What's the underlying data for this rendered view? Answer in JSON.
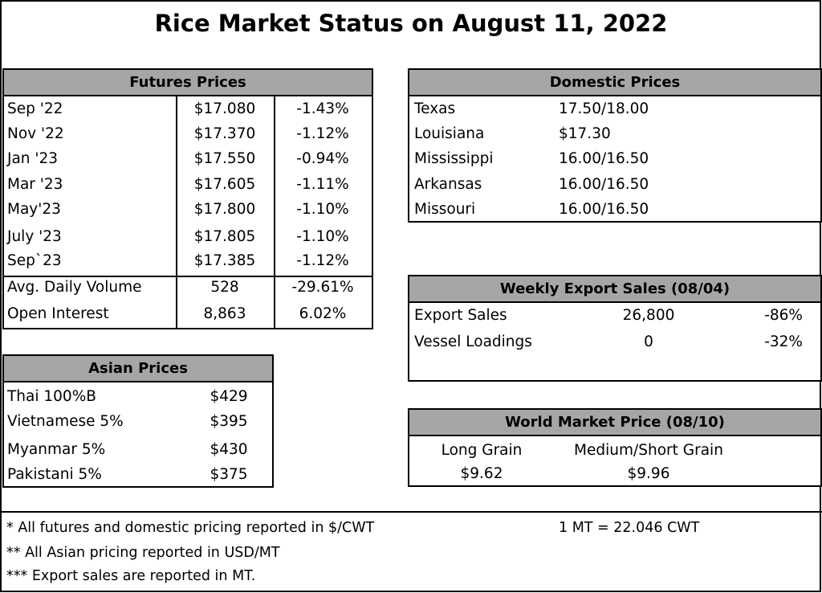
{
  "title": "Rice Market Status on August 11, 2022",
  "futures": {
    "header": "Futures Prices",
    "rows": [
      {
        "month": "Sep '22",
        "price": "$17.080",
        "change": "-1.43%"
      },
      {
        "month": "Nov '22",
        "price": "$17.370",
        "change": "-1.12%"
      },
      {
        "month": "Jan '23",
        "price": "$17.550",
        "change": "-0.94%"
      },
      {
        "month": "Mar '23",
        "price": "$17.605",
        "change": "-1.11%"
      },
      {
        "month": "May'23",
        "price": "$17.800",
        "change": "-1.10%"
      },
      {
        "month": "July '23",
        "price": "$17.805",
        "change": "-1.10%"
      },
      {
        "month": "Sep`23",
        "price": "$17.385",
        "change": "-1.12%"
      }
    ],
    "stats": [
      {
        "label": "Avg. Daily Volume",
        "value": "528",
        "change": "-29.61%"
      },
      {
        "label": "Open Interest",
        "value": "8,863",
        "change": "6.02%"
      }
    ]
  },
  "domestic": {
    "header": "Domestic Prices",
    "rows": [
      {
        "state": "Texas",
        "price": "17.50/18.00"
      },
      {
        "state": "Louisiana",
        "price": "$17.30"
      },
      {
        "state": "Mississippi",
        "price": "16.00/16.50"
      },
      {
        "state": "Arkansas",
        "price": "16.00/16.50"
      },
      {
        "state": "Missouri",
        "price": "16.00/16.50"
      }
    ]
  },
  "asian": {
    "header": "Asian Prices",
    "rows": [
      {
        "name": "Thai 100%B",
        "price": "$429"
      },
      {
        "name": "Vietnamese 5%",
        "price": "$395"
      },
      {
        "name": "Myanmar 5%",
        "price": "$430"
      },
      {
        "name": "Pakistani 5%",
        "price": "$375"
      }
    ]
  },
  "export": {
    "header": "Weekly Export Sales (08/04)",
    "rows": [
      {
        "label": "Export Sales",
        "value": "26,800",
        "change": "-86%"
      },
      {
        "label": "Vessel Loadings",
        "value": "0",
        "change": "-32%"
      }
    ]
  },
  "world": {
    "header": "World Market Price (08/10)",
    "long_label": "Long Grain",
    "long_value": "$9.62",
    "medium_label": "Medium/Short Grain",
    "medium_value": "$9.96"
  },
  "footnotes": {
    "n1": "* All futures and domestic pricing reported in $/CWT",
    "conversion": "1 MT = 22.046 CWT",
    "n2": "** All Asian pricing reported in USD/MT",
    "n3": "*** Export sales are reported in MT."
  }
}
